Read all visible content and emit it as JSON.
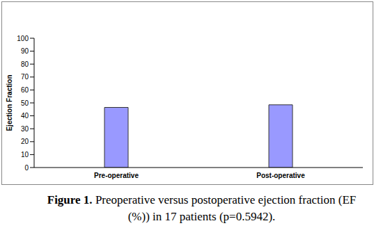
{
  "chart_data": {
    "type": "bar",
    "caption_label": "Figure 1.",
    "caption": "Preoperative versus postoperative ejection fraction (EF (%)) in 17 patients (p=0.5942).",
    "y_label": "Ejection Fraction",
    "categories": [
      "Pre-operative",
      "Post-operative"
    ],
    "values": [
      46.5,
      48.5
    ],
    "color": "#9999ff",
    "ylim": [
      0,
      100
    ],
    "yticks": [
      0,
      10,
      20,
      30,
      40,
      50,
      60,
      70,
      80,
      90,
      100
    ],
    "grid": false
  }
}
